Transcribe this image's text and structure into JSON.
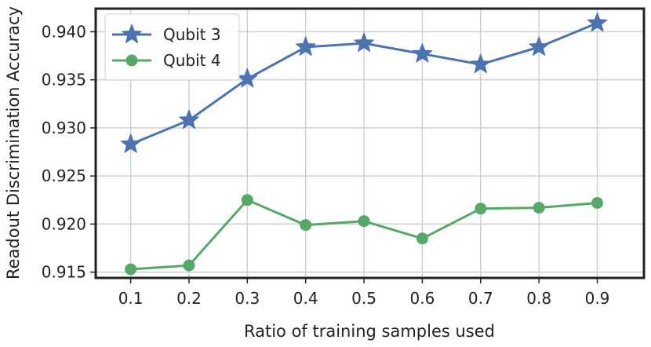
{
  "chart_data": {
    "type": "line",
    "title": "",
    "xlabel": "Ratio of training samples used",
    "ylabel": "Readout Discrimination Accuracy",
    "x": [
      0.1,
      0.2,
      0.3,
      0.4,
      0.5,
      0.6,
      0.7,
      0.8,
      0.9
    ],
    "x_tick_labels": [
      "0.1",
      "0.2",
      "0.3",
      "0.4",
      "0.5",
      "0.6",
      "0.7",
      "0.8",
      "0.9"
    ],
    "y_ticks": [
      0.915,
      0.92,
      0.925,
      0.93,
      0.935,
      0.94
    ],
    "y_tick_labels": [
      "0.915",
      "0.920",
      "0.925",
      "0.930",
      "0.935",
      "0.940"
    ],
    "xlim": [
      0.04,
      0.98
    ],
    "ylim": [
      0.9144,
      0.9424
    ],
    "grid": true,
    "legend_position": "top-left",
    "series": [
      {
        "name": "Qubit 3",
        "color": "#4c72b0",
        "marker": "star",
        "values": [
          0.9283,
          0.9308,
          0.9351,
          0.9384,
          0.9388,
          0.9377,
          0.9366,
          0.9384,
          0.9409
        ]
      },
      {
        "name": "Qubit 4",
        "color": "#55a868",
        "marker": "circle",
        "values": [
          0.9153,
          0.9157,
          0.9225,
          0.9199,
          0.9203,
          0.9185,
          0.9216,
          0.9217,
          0.9222
        ]
      }
    ]
  }
}
